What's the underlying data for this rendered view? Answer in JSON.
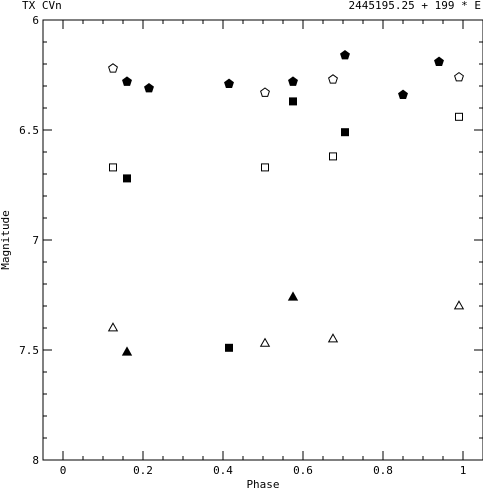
{
  "chart_data": {
    "type": "scatter",
    "title_left": "TX CVn",
    "title_right": "2445195.25 + 199 * E",
    "xlabel": "Phase",
    "ylabel": "Magnitude",
    "xlim": [
      -0.05,
      1.05
    ],
    "ylim": [
      6,
      8
    ],
    "y_inverted": true,
    "x_ticks": [
      "0",
      "0.2",
      "0.4",
      "0.6",
      "0.8",
      "1"
    ],
    "x_tick_values": [
      0,
      0.2,
      0.4,
      0.6,
      0.8,
      1
    ],
    "y_ticks": [
      "6",
      "6.5",
      "7",
      "7.5",
      "8"
    ],
    "y_tick_values": [
      6,
      6.5,
      7,
      7.5,
      8
    ],
    "grid": false,
    "series": [
      {
        "marker": "open-pentagon",
        "points": [
          [
            0.125,
            6.22
          ],
          [
            0.505,
            6.33
          ],
          [
            0.675,
            6.27
          ],
          [
            0.99,
            6.26
          ]
        ]
      },
      {
        "marker": "filled-pentagon",
        "points": [
          [
            0.16,
            6.28
          ],
          [
            0.215,
            6.31
          ],
          [
            0.415,
            6.29
          ],
          [
            0.575,
            6.28
          ],
          [
            0.705,
            6.16
          ],
          [
            0.85,
            6.34
          ],
          [
            0.94,
            6.19
          ]
        ]
      },
      {
        "marker": "open-square",
        "points": [
          [
            0.125,
            6.67
          ],
          [
            0.505,
            6.67
          ],
          [
            0.675,
            6.62
          ],
          [
            0.99,
            6.44
          ]
        ]
      },
      {
        "marker": "filled-square",
        "points": [
          [
            0.16,
            6.72
          ],
          [
            0.575,
            6.37
          ],
          [
            0.705,
            6.51
          ],
          [
            0.415,
            7.49
          ]
        ]
      },
      {
        "marker": "open-triangle",
        "points": [
          [
            0.125,
            7.4
          ],
          [
            0.505,
            7.47
          ],
          [
            0.675,
            7.45
          ],
          [
            0.99,
            7.3
          ]
        ]
      },
      {
        "marker": "filled-triangle",
        "points": [
          [
            0.16,
            7.51
          ],
          [
            0.575,
            7.26
          ]
        ]
      }
    ]
  }
}
